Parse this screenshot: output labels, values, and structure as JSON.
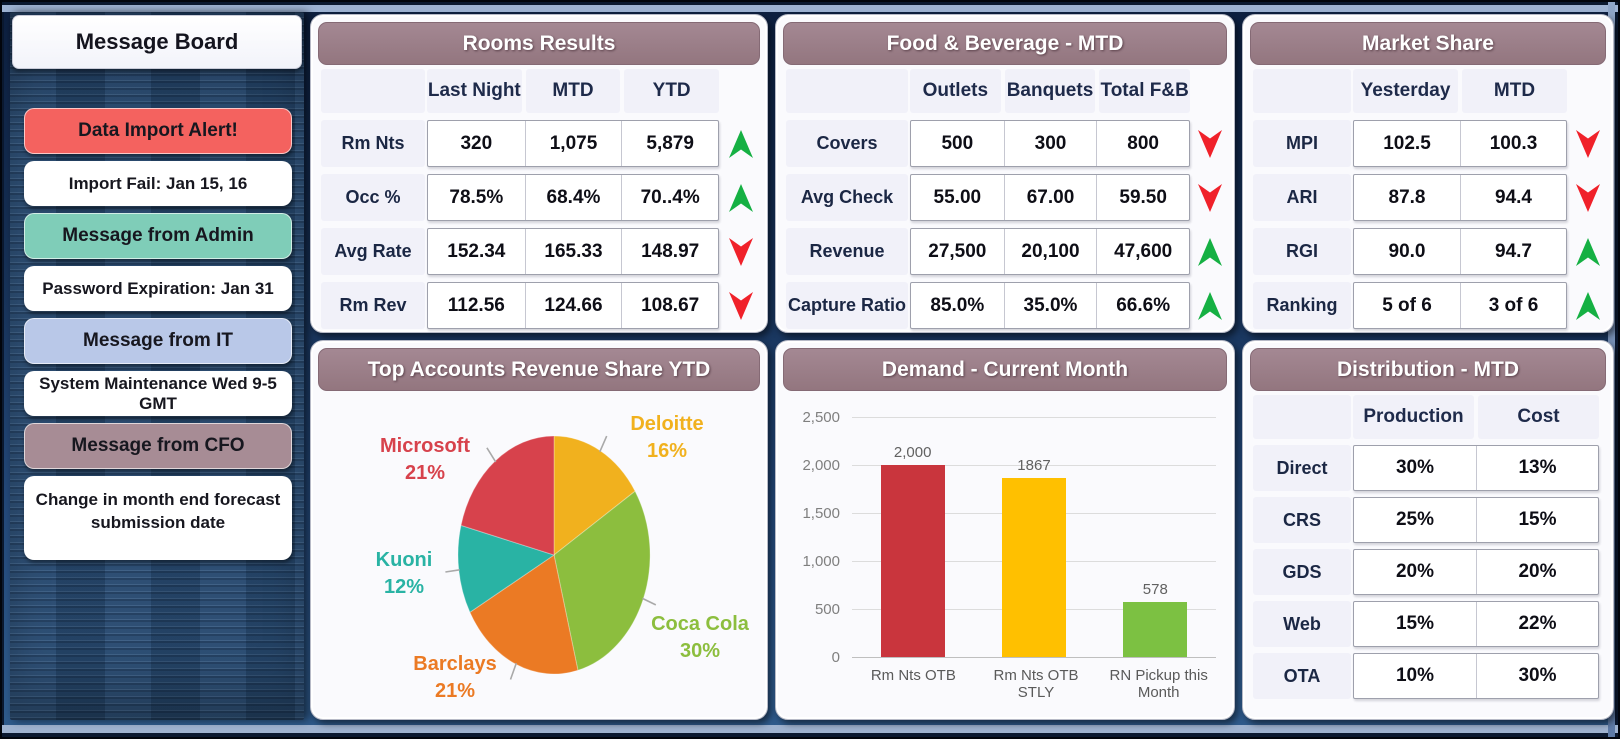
{
  "colors": {
    "trend_up": "#15B043",
    "trend_down": "#F0212A",
    "panel_header_bg": "#9A7D87",
    "alert_red": "#F4625F",
    "admin_teal": "#7FCDB8",
    "it_blue": "#B9C8E8",
    "cfo_mauve": "#A78C95",
    "denim_bg": "#2F547C"
  },
  "icons": {
    "trend_up": "green-up-dart-arrow",
    "trend_down": "red-down-dart-arrow"
  },
  "sidebar": {
    "title": "Message Board",
    "items": [
      {
        "label": "Data Import Alert!",
        "type": "alert"
      },
      {
        "label": "Import Fail: Jan 15, 16",
        "type": "note"
      },
      {
        "label": "Message from Admin",
        "type": "admin"
      },
      {
        "label": "Password Expiration: Jan 31",
        "type": "note"
      },
      {
        "label": "Message from IT",
        "type": "it"
      },
      {
        "label": "System Maintenance Wed 9-5 GMT",
        "type": "note"
      },
      {
        "label": "Message from CFO",
        "type": "cfo"
      },
      {
        "label": "Change in month end forecast submission date",
        "type": "note"
      }
    ]
  },
  "panels": {
    "rooms": {
      "title": "Rooms Results",
      "columns": [
        "Last Night",
        "MTD",
        "YTD"
      ],
      "rows": [
        {
          "label": "Rm Nts",
          "values": [
            "320",
            "1,075",
            "5,879"
          ],
          "trend": "up"
        },
        {
          "label": "Occ %",
          "values": [
            "78.5%",
            "68.4%",
            "70..4%"
          ],
          "trend": "up"
        },
        {
          "label": "Avg Rate",
          "values": [
            "152.34",
            "165.33",
            "148.97"
          ],
          "trend": "down"
        },
        {
          "label": "Rm Rev",
          "values": [
            "112.56",
            "124.66",
            "108.67"
          ],
          "trend": "down"
        }
      ]
    },
    "fnb": {
      "title": "Food & Beverage - MTD",
      "columns": [
        "Outlets",
        "Banquets",
        "Total F&B"
      ],
      "rows": [
        {
          "label": "Covers",
          "values": [
            "500",
            "300",
            "800"
          ],
          "trend": "down"
        },
        {
          "label": "Avg Check",
          "values": [
            "55.00",
            "67.00",
            "59.50"
          ],
          "trend": "down"
        },
        {
          "label": "Revenue",
          "values": [
            "27,500",
            "20,100",
            "47,600"
          ],
          "trend": "up"
        },
        {
          "label": "Capture Ratio",
          "values": [
            "85.0%",
            "35.0%",
            "66.6%"
          ],
          "trend": "up"
        }
      ]
    },
    "market": {
      "title": "Market Share",
      "columns": [
        "Yesterday",
        "MTD"
      ],
      "rows": [
        {
          "label": "MPI",
          "values": [
            "102.5",
            "100.3"
          ],
          "trend": "down"
        },
        {
          "label": "ARI",
          "values": [
            "87.8",
            "94.4"
          ],
          "trend": "down"
        },
        {
          "label": "RGI",
          "values": [
            "90.0",
            "94.7"
          ],
          "trend": "up"
        },
        {
          "label": "Ranking",
          "values": [
            "5 of 6",
            "3 of 6"
          ],
          "trend": "up"
        }
      ]
    },
    "distribution": {
      "title": "Distribution - MTD",
      "columns": [
        "Production",
        "Cost"
      ],
      "rows": [
        {
          "label": "Direct",
          "values": [
            "30%",
            "13%"
          ]
        },
        {
          "label": "CRS",
          "values": [
            "25%",
            "15%"
          ]
        },
        {
          "label": "GDS",
          "values": [
            "20%",
            "20%"
          ]
        },
        {
          "label": "Web",
          "values": [
            "15%",
            "22%"
          ]
        },
        {
          "label": "OTA",
          "values": [
            "10%",
            "30%"
          ]
        }
      ]
    }
  },
  "chart_data": [
    {
      "type": "pie",
      "title": "Top Accounts Revenue Share YTD",
      "slices": [
        {
          "label": "Deloitte",
          "value": 16,
          "pct": "16%",
          "color": "#F1B11E"
        },
        {
          "label": "Coca Cola",
          "value": 30,
          "pct": "30%",
          "color": "#8CBE3E"
        },
        {
          "label": "Barclays",
          "value": 21,
          "pct": "21%",
          "color": "#EB7A24"
        },
        {
          "label": "Kuoni",
          "value": 12,
          "pct": "12%",
          "color": "#29B3A4"
        },
        {
          "label": "Microsoft",
          "value": 21,
          "pct": "21%",
          "color": "#D7424C"
        }
      ],
      "start_angle": "12 o'clock, clockwise",
      "legend_position": "callout-labels"
    },
    {
      "type": "bar",
      "title": "Demand - Current Month",
      "categories": [
        "Rm Nts OTB",
        "Rm Nts OTB STLY",
        "RN Pickup this Month"
      ],
      "values": [
        2000,
        1867,
        578
      ],
      "value_labels": [
        "2,000",
        "1867",
        "578"
      ],
      "bar_colors": [
        "#C9353D",
        "#FFC000",
        "#7CC142"
      ],
      "ylim": [
        0,
        2500
      ],
      "yticks": [
        "2,500",
        "2,000",
        "1,500",
        "1,000",
        "500",
        "0"
      ],
      "grid": true,
      "legend_position": "none"
    }
  ]
}
